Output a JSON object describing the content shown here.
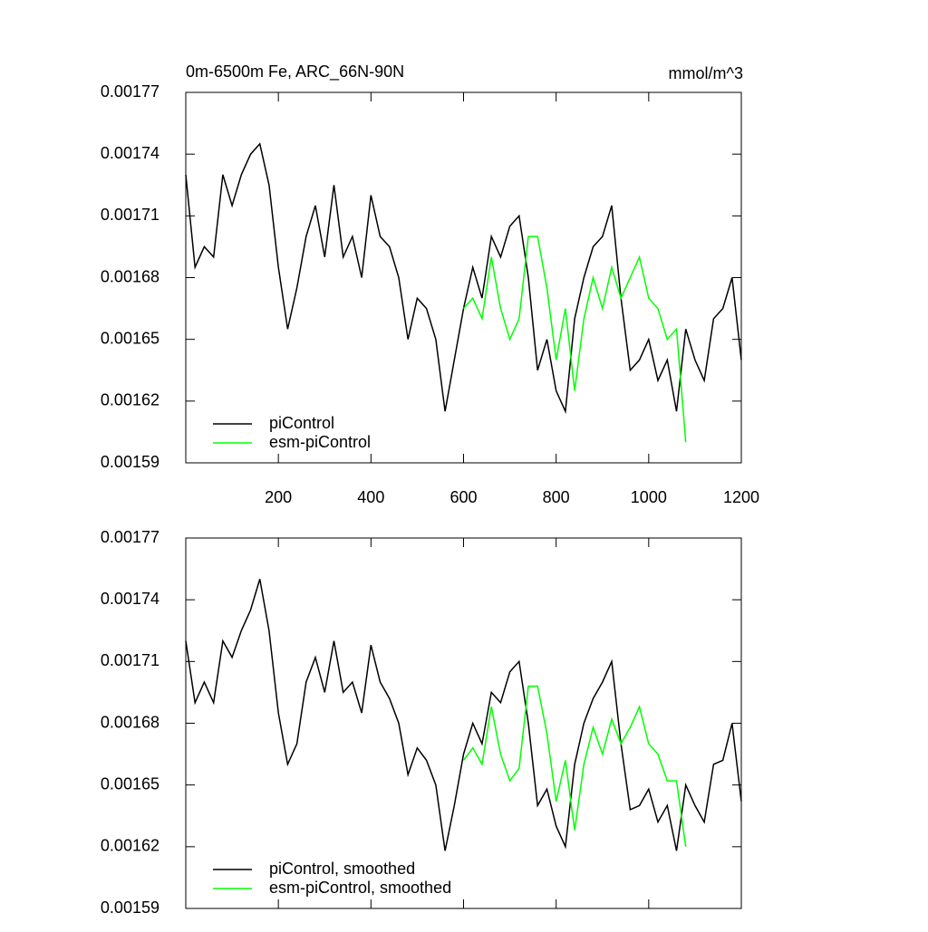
{
  "chart_data": [
    {
      "type": "line",
      "title": "0m-6500m Fe, ARC_66N-90N",
      "units": "mmol/m^3",
      "xlim": [
        0,
        1200
      ],
      "xticks": [
        200,
        400,
        600,
        800,
        1000,
        1200
      ],
      "show_xtick_labels": true,
      "ylim": [
        0.00159,
        0.00177
      ],
      "yticks": [
        0.00159,
        0.00162,
        0.00165,
        0.00168,
        0.00171,
        0.00174,
        0.00177
      ],
      "x": [
        0,
        20,
        40,
        60,
        80,
        100,
        120,
        140,
        160,
        180,
        200,
        220,
        240,
        260,
        280,
        300,
        320,
        340,
        360,
        380,
        400,
        420,
        440,
        460,
        480,
        500,
        520,
        540,
        560,
        580,
        600,
        620,
        640,
        660,
        680,
        700,
        720,
        740,
        760,
        780,
        800,
        820,
        840,
        860,
        880,
        900,
        920,
        940,
        960,
        980,
        1000,
        1020,
        1040,
        1060,
        1080,
        1100,
        1120,
        1140,
        1160,
        1180,
        1200
      ],
      "series": [
        {
          "name": "piControl",
          "color": "#000000",
          "values": [
            0.00173,
            0.001685,
            0.001695,
            0.00169,
            0.00173,
            0.001715,
            0.00173,
            0.00174,
            0.001745,
            0.001725,
            0.001685,
            0.001655,
            0.001675,
            0.0017,
            0.001715,
            0.00169,
            0.001725,
            0.00169,
            0.0017,
            0.00168,
            0.00172,
            0.0017,
            0.001695,
            0.00168,
            0.00165,
            0.00167,
            0.001665,
            0.00165,
            0.001615,
            0.00164,
            0.001665,
            0.001685,
            0.00167,
            0.0017,
            0.00169,
            0.001705,
            0.00171,
            0.00168,
            0.001635,
            0.00165,
            0.001625,
            0.001615,
            0.00166,
            0.00168,
            0.001695,
            0.0017,
            0.001715,
            0.00167,
            0.001635,
            0.00164,
            0.00165,
            0.00163,
            0.00164,
            0.001615,
            0.001655,
            0.00164,
            0.00163,
            0.00166,
            0.001665,
            0.00168,
            0.00164
          ]
        },
        {
          "name": "esm-piControl",
          "color": "#00ff00",
          "values": [
            null,
            null,
            null,
            null,
            null,
            null,
            null,
            null,
            null,
            null,
            null,
            null,
            null,
            null,
            null,
            null,
            null,
            null,
            null,
            null,
            null,
            null,
            null,
            null,
            null,
            null,
            null,
            null,
            null,
            null,
            0.001665,
            0.00167,
            0.00166,
            0.00169,
            0.001665,
            0.00165,
            0.00166,
            0.0017,
            0.0017,
            0.001675,
            0.00164,
            0.001665,
            0.001625,
            0.00166,
            0.00168,
            0.001665,
            0.001685,
            0.00167,
            0.00168,
            0.00169,
            0.00167,
            0.001665,
            0.00165,
            0.001655,
            0.0016,
            null,
            null,
            null,
            null,
            null,
            null
          ]
        }
      ]
    },
    {
      "type": "line",
      "xlim": [
        0,
        1200
      ],
      "xticks": [
        200,
        400,
        600,
        800,
        1000,
        1200
      ],
      "show_xtick_labels": false,
      "ylim": [
        0.00159,
        0.00177
      ],
      "yticks": [
        0.00159,
        0.00162,
        0.00165,
        0.00168,
        0.00171,
        0.00174,
        0.00177
      ],
      "x": [
        0,
        20,
        40,
        60,
        80,
        100,
        120,
        140,
        160,
        180,
        200,
        220,
        240,
        260,
        280,
        300,
        320,
        340,
        360,
        380,
        400,
        420,
        440,
        460,
        480,
        500,
        520,
        540,
        560,
        580,
        600,
        620,
        640,
        660,
        680,
        700,
        720,
        740,
        760,
        780,
        800,
        820,
        840,
        860,
        880,
        900,
        920,
        940,
        960,
        980,
        1000,
        1020,
        1040,
        1060,
        1080,
        1100,
        1120,
        1140,
        1160,
        1180,
        1200
      ],
      "series": [
        {
          "name": "piControl, smoothed",
          "color": "#000000",
          "values": [
            0.00172,
            0.00169,
            0.0017,
            0.00169,
            0.00172,
            0.001712,
            0.001725,
            0.001735,
            0.00175,
            0.001725,
            0.001685,
            0.00166,
            0.00167,
            0.0017,
            0.001712,
            0.001695,
            0.00172,
            0.001695,
            0.0017,
            0.001685,
            0.001718,
            0.0017,
            0.001692,
            0.00168,
            0.001655,
            0.001668,
            0.001662,
            0.00165,
            0.001618,
            0.00164,
            0.001665,
            0.00168,
            0.00167,
            0.001695,
            0.00169,
            0.001705,
            0.00171,
            0.00168,
            0.00164,
            0.001648,
            0.00163,
            0.00162,
            0.00166,
            0.00168,
            0.001692,
            0.0017,
            0.00171,
            0.00167,
            0.001638,
            0.00164,
            0.001648,
            0.001632,
            0.00164,
            0.001618,
            0.00165,
            0.00164,
            0.001632,
            0.00166,
            0.001662,
            0.00168,
            0.001642
          ]
        },
        {
          "name": "esm-piControl, smoothed",
          "color": "#00ff00",
          "values": [
            null,
            null,
            null,
            null,
            null,
            null,
            null,
            null,
            null,
            null,
            null,
            null,
            null,
            null,
            null,
            null,
            null,
            null,
            null,
            null,
            null,
            null,
            null,
            null,
            null,
            null,
            null,
            null,
            null,
            null,
            0.001662,
            0.001668,
            0.00166,
            0.001688,
            0.001665,
            0.001652,
            0.001658,
            0.001698,
            0.001698,
            0.001675,
            0.001642,
            0.001662,
            0.001628,
            0.00166,
            0.001678,
            0.001665,
            0.001682,
            0.00167,
            0.001678,
            0.001688,
            0.00167,
            0.001665,
            0.001652,
            0.001652,
            0.00162,
            null,
            null,
            null,
            null,
            null,
            null
          ]
        }
      ]
    }
  ]
}
